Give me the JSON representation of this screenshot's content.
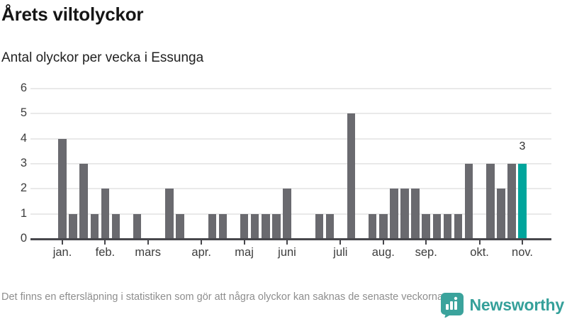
{
  "header": {
    "title": "Årets viltolyckor",
    "subtitle": "Antal olyckor per vecka i Essunga"
  },
  "footer": {
    "note": "Det finns en eftersläpning i statistiken som gör att några olyckor kan saknas de senaste veckorna.",
    "brand": "Newsworthy",
    "logo_icon": "newsworthy-speech-bubble-bar-chart-icon"
  },
  "colors": {
    "bar": "#6a6a6f",
    "highlight": "#00a59c",
    "grid": "#e9e9e9",
    "axis": "#47474c",
    "tick_label": "#3d3d3d",
    "note": "#8e8e8e",
    "brand": "#35a09a"
  },
  "chart_data": {
    "type": "bar",
    "title": "Årets viltolyckor",
    "subtitle": "Antal olyckor per vecka i Essunga",
    "x_unit": "vecka (week of year)",
    "ylabel": "Antal olyckor",
    "ylim": [
      0,
      6
    ],
    "yticks": [
      0,
      1,
      2,
      3,
      4,
      5,
      6
    ],
    "grid": true,
    "values": [
      4,
      1,
      3,
      1,
      2,
      1,
      0,
      1,
      0,
      0,
      2,
      1,
      0,
      0,
      1,
      1,
      0,
      1,
      1,
      1,
      1,
      2,
      0,
      0,
      1,
      1,
      0,
      5,
      0,
      1,
      1,
      2,
      2,
      2,
      1,
      1,
      1,
      1,
      3,
      0,
      3,
      2,
      3,
      3
    ],
    "month_ticks": [
      {
        "label": "jan.",
        "week_index": 0
      },
      {
        "label": "feb.",
        "week_index": 4
      },
      {
        "label": "mars",
        "week_index": 8
      },
      {
        "label": "apr.",
        "week_index": 13
      },
      {
        "label": "maj",
        "week_index": 17
      },
      {
        "label": "juni",
        "week_index": 21
      },
      {
        "label": "juli",
        "week_index": 26
      },
      {
        "label": "aug.",
        "week_index": 30
      },
      {
        "label": "sep.",
        "week_index": 34
      },
      {
        "label": "okt.",
        "week_index": 39
      },
      {
        "label": "nov.",
        "week_index": 43
      }
    ],
    "highlight": {
      "index": 43,
      "value_label": "3"
    }
  }
}
